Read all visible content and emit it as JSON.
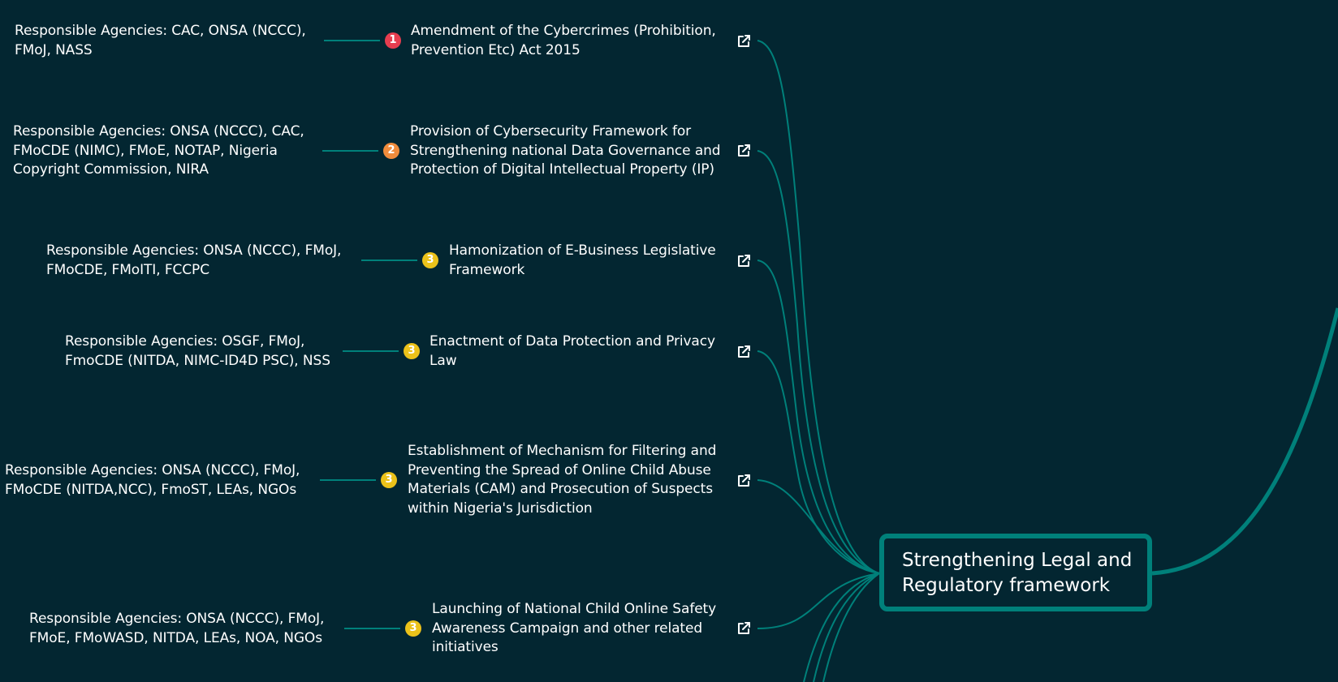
{
  "central_node": {
    "label_line1": "Strengthening Legal and",
    "label_line2": "Regulatory framework"
  },
  "colors": {
    "background": "#032631",
    "edge": "#00807a",
    "priority_1": "#e63d4f",
    "priority_2": "#f08c3c",
    "priority_3": "#ecc21a"
  },
  "items": [
    {
      "priority": "1",
      "title": [
        "Amendment of the Cybercrimes (Prohibition,",
        "Prevention Etc) Act 2015"
      ],
      "agencies": [
        "Responsible Agencies: CAC, ONSA (NCCC),",
        "FMoJ, NASS"
      ],
      "link_icon": "external-link-icon"
    },
    {
      "priority": "2",
      "title": [
        "Provision of Cybersecurity Framework for",
        "Strengthening national Data Governance and",
        "Protection of Digital Intellectual Property (IP)"
      ],
      "agencies": [
        "Responsible Agencies: ONSA (NCCC), CAC,",
        "FMoCDE (NIMC), FMoE, NOTAP, Nigeria",
        "Copyright Commission, NIRA"
      ],
      "link_icon": "external-link-icon"
    },
    {
      "priority": "3",
      "title": [
        "Hamonization of E-Business Legislative",
        "Framework"
      ],
      "agencies": [
        "Responsible Agencies: ONSA (NCCC), FMoJ,",
        "FMoCDE, FMoITI, FCCPC"
      ],
      "link_icon": "external-link-icon"
    },
    {
      "priority": "3",
      "title": [
        "Enactment of Data Protection and Privacy",
        "Law"
      ],
      "agencies": [
        "Responsible Agencies: OSGF, FMoJ,",
        "FmoCDE (NITDA, NIMC-ID4D PSC), NSS"
      ],
      "link_icon": "external-link-icon"
    },
    {
      "priority": "3",
      "title": [
        "Establishment of Mechanism for Filtering and",
        "Preventing the Spread of Online Child Abuse",
        "Materials (CAM) and Prosecution of Suspects",
        "within Nigeria's Jurisdiction"
      ],
      "agencies": [
        "Responsible Agencies: ONSA (NCCC), FMoJ,",
        "FMoCDE (NITDA,NCC), FmoST, LEAs, NGOs"
      ],
      "link_icon": "external-link-icon"
    },
    {
      "priority": "3",
      "title": [
        "Launching of National Child Online Safety",
        "Awareness Campaign and other related",
        "initiatives"
      ],
      "agencies": [
        "Responsible Agencies: ONSA (NCCC), FMoJ,",
        "FMoE, FMoWASD, NITDA, LEAs, NOA, NGOs"
      ],
      "link_icon": "external-link-icon"
    }
  ]
}
